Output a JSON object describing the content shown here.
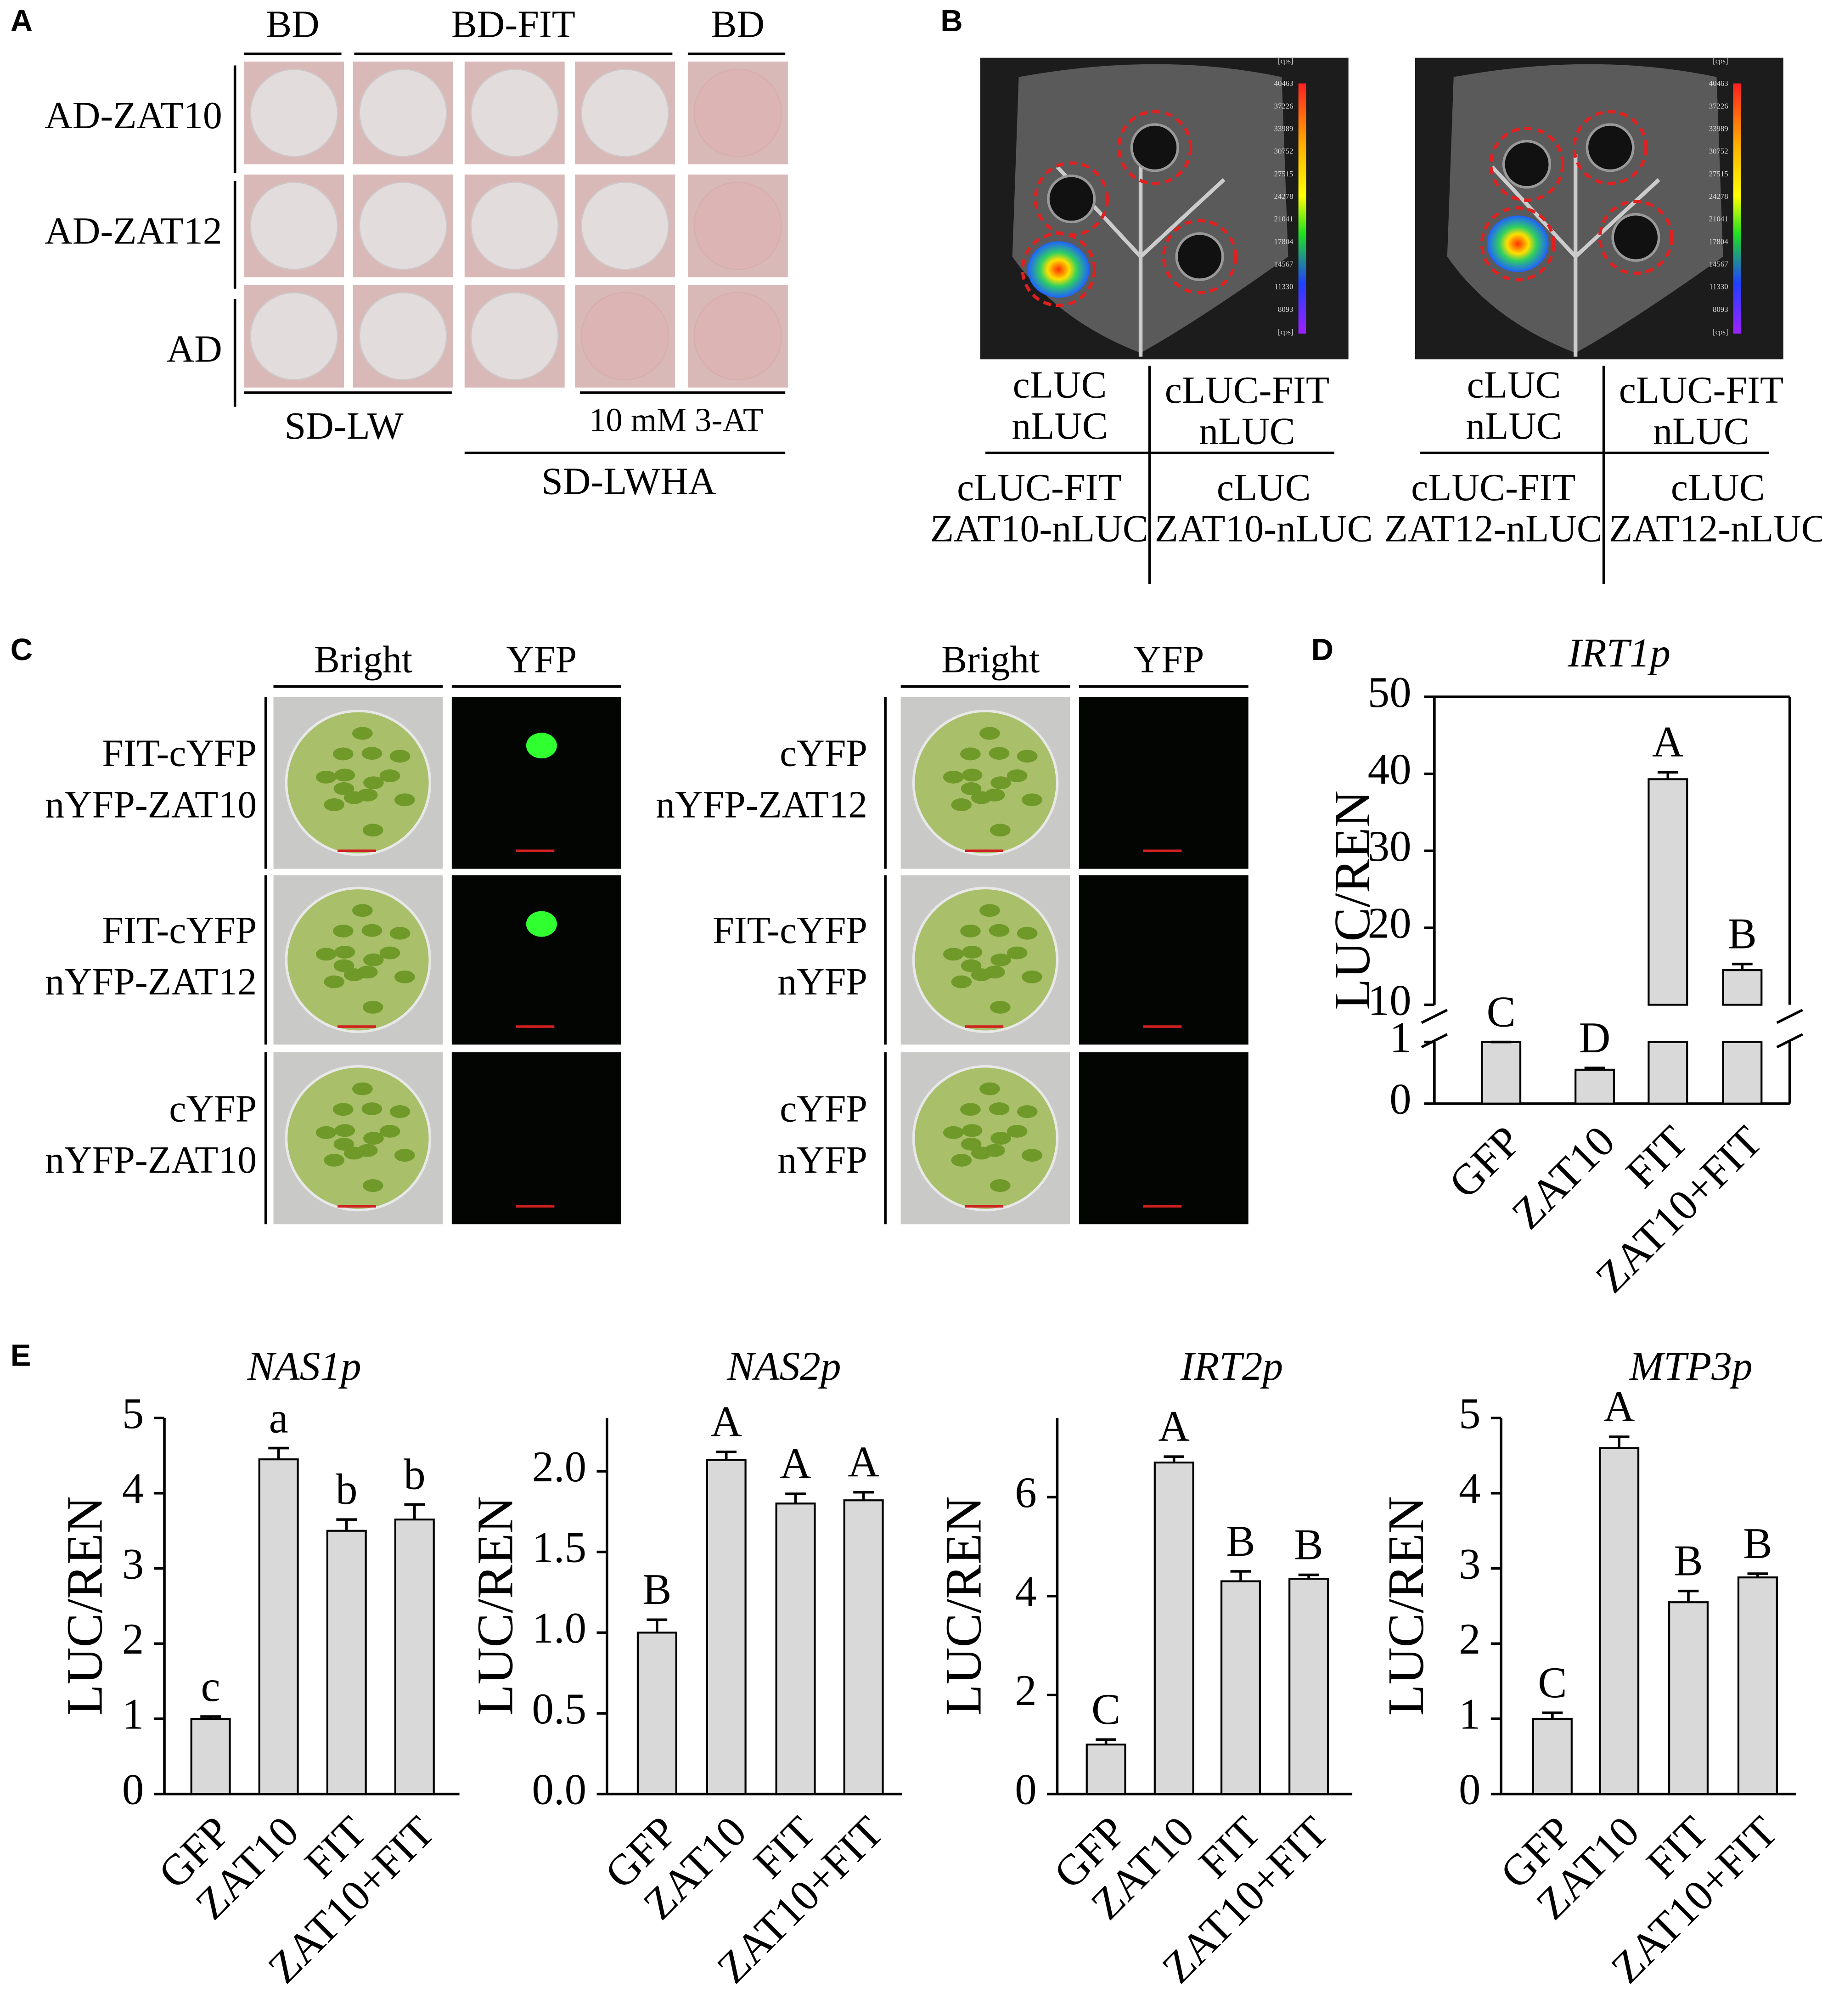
{
  "panel_labels": [
    "A",
    "B",
    "C",
    "D",
    "E"
  ],
  "panel_a": {
    "top_labels": [
      "BD",
      "BD-FIT",
      "BD"
    ],
    "row_labels": [
      "AD-ZAT10",
      "AD-ZAT12",
      "AD"
    ],
    "bottom_labels": [
      "SD-LW",
      "10 mM 3-AT",
      "SD-LWHA"
    ]
  },
  "panel_b": {
    "colorbar_labels": [
      "[cps]",
      "40463",
      "37226",
      "33989",
      "30752",
      "27515",
      "24278",
      "21041",
      "17804",
      "14567",
      "11330",
      "8093",
      "[cps]"
    ],
    "left_table": [
      [
        "cLUC",
        "nLUC"
      ],
      [
        "cLUC-FIT",
        "nLUC"
      ],
      [
        "cLUC-FIT",
        "ZAT10-nLUC"
      ],
      [
        "cLUC",
        "ZAT10-nLUC"
      ]
    ],
    "right_table": [
      [
        "cLUC",
        "nLUC"
      ],
      [
        "cLUC-FIT",
        "nLUC"
      ],
      [
        "cLUC-FIT",
        "ZAT12-nLUC"
      ],
      [
        "cLUC",
        "ZAT12-nLUC"
      ]
    ]
  },
  "panel_c": {
    "column_labels": [
      "Bright",
      "YFP"
    ],
    "left_rows": [
      [
        "FIT-cYFP",
        "nYFP-ZAT10"
      ],
      [
        "FIT-cYFP",
        "nYFP-ZAT12"
      ],
      [
        "cYFP",
        "nYFP-ZAT10"
      ]
    ],
    "right_rows": [
      [
        "cYFP",
        "nYFP-ZAT12"
      ],
      [
        "FIT-cYFP",
        "nYFP"
      ],
      [
        "cYFP",
        "nYFP"
      ]
    ]
  },
  "chart_data": [
    {
      "type": "bar",
      "title": "IRT1p",
      "ylabel": "LUC/REN",
      "categories": [
        "GFP",
        "ZAT10",
        "FIT",
        "ZAT10+FIT"
      ],
      "values": [
        1,
        0.55,
        39.3,
        14.5
      ],
      "errors": [
        0,
        0.03,
        0.9,
        0.8
      ],
      "letters": [
        "C",
        "D",
        "A",
        "B"
      ],
      "ylim": [
        0,
        50
      ],
      "axis_break": [
        1,
        10
      ],
      "yticks": [
        0,
        1,
        10,
        20,
        30,
        40,
        50
      ],
      "color": "#d9d9d9"
    },
    {
      "type": "bar",
      "title": "NAS1p",
      "ylabel": "LUC/REN",
      "categories": [
        "GFP",
        "ZAT10",
        "FIT",
        "ZAT10+FIT"
      ],
      "values": [
        1.0,
        4.45,
        3.5,
        3.65
      ],
      "errors": [
        0.03,
        0.15,
        0.15,
        0.2
      ],
      "letters": [
        "c",
        "a",
        "b",
        "b"
      ],
      "ylim": [
        0,
        5
      ],
      "yticks": [
        0,
        1,
        2,
        3,
        4,
        5
      ],
      "color": "#d9d9d9"
    },
    {
      "type": "bar",
      "title": "NAS2p",
      "ylabel": "LUC/REN",
      "categories": [
        "GFP",
        "ZAT10",
        "FIT",
        "ZAT10+FIT"
      ],
      "values": [
        1.0,
        2.07,
        1.8,
        1.82
      ],
      "errors": [
        0.08,
        0.05,
        0.06,
        0.05
      ],
      "letters": [
        "B",
        "A",
        "A",
        "A"
      ],
      "ylim": [
        0,
        2.33
      ],
      "yticks": [
        {
          "value": 0,
          "label": "0.0"
        },
        0.5,
        {
          "value": 1,
          "label": "1.0"
        },
        1.5,
        {
          "value": 2,
          "label": "2.0"
        }
      ],
      "color": "#d9d9d9"
    },
    {
      "type": "bar",
      "title": "IRT2p",
      "ylabel": "LUC/REN",
      "categories": [
        "GFP",
        "ZAT10",
        "FIT",
        "ZAT10+FIT"
      ],
      "values": [
        1.0,
        6.7,
        4.3,
        4.35
      ],
      "errors": [
        0.1,
        0.12,
        0.2,
        0.08
      ],
      "letters": [
        "C",
        "A",
        "B",
        "B"
      ],
      "ylim": [
        0,
        7.6
      ],
      "yticks": [
        0,
        2,
        4,
        6
      ],
      "color": "#d9d9d9"
    },
    {
      "type": "bar",
      "title": "MTP3p",
      "ylabel": "LUC/REN",
      "categories": [
        "GFP",
        "ZAT10",
        "FIT",
        "ZAT10+FIT"
      ],
      "values": [
        1.0,
        4.6,
        2.55,
        2.88
      ],
      "errors": [
        0.08,
        0.15,
        0.15,
        0.05
      ],
      "letters": [
        "C",
        "A",
        "B",
        "B"
      ],
      "ylim": [
        0,
        5
      ],
      "yticks": [
        0,
        1,
        2,
        3,
        4,
        5
      ],
      "color": "#d9d9d9"
    }
  ]
}
